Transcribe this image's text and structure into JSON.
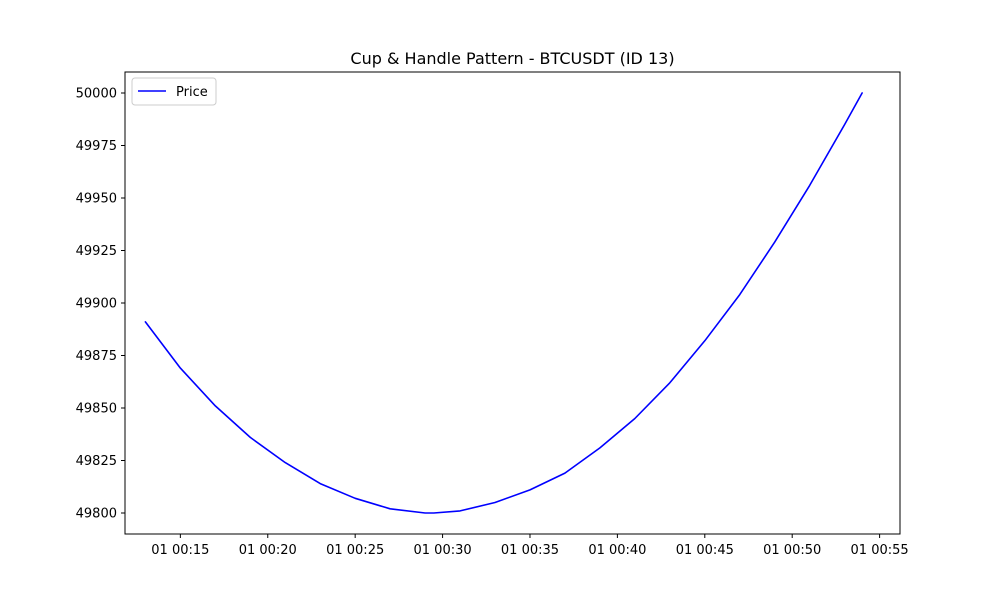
{
  "chart_data": {
    "type": "line",
    "title": "Cup & Handle Pattern - BTCUSDT (ID 13)",
    "xlabel": "",
    "ylabel": "",
    "x_ticks": [
      "01 00:15",
      "01 00:20",
      "01 00:25",
      "01 00:30",
      "01 00:35",
      "01 00:40",
      "01 00:45",
      "01 00:50",
      "01 00:55"
    ],
    "y_ticks": [
      49800,
      49825,
      49850,
      49875,
      49900,
      49925,
      49950,
      49975,
      50000
    ],
    "xlim": [
      "00:11:50",
      "00:56:10"
    ],
    "ylim": [
      49790,
      50010
    ],
    "grid": false,
    "legend_position": "upper-left",
    "series": [
      {
        "name": "Price",
        "color": "#0000ff",
        "x": [
          "00:13",
          "00:15",
          "00:17",
          "00:19",
          "00:21",
          "00:23",
          "00:25",
          "00:27",
          "00:29",
          "00:29:30",
          "00:31",
          "00:33",
          "00:35",
          "00:37",
          "00:39",
          "00:41",
          "00:43",
          "00:45",
          "00:47",
          "00:49",
          "00:51",
          "00:53",
          "00:54"
        ],
        "values": [
          49891,
          49869,
          49851,
          49836,
          49824,
          49814,
          49807,
          49802,
          49800,
          49800,
          49801,
          49805,
          49811,
          49819,
          49831,
          49845,
          49862,
          49882,
          49904,
          49929,
          49956,
          49985,
          50000
        ]
      }
    ]
  }
}
